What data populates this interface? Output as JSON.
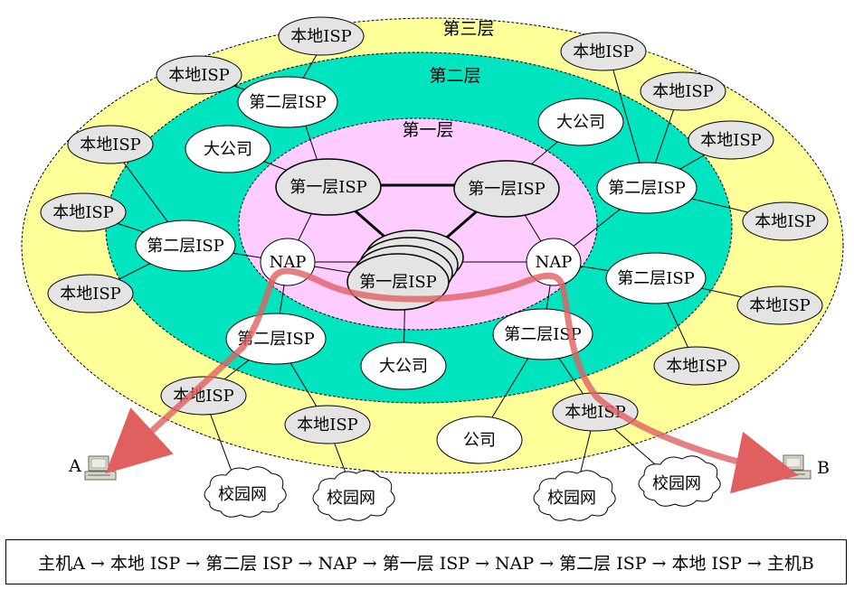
{
  "layers": {
    "tier3": "第三层",
    "tier2": "第二层",
    "tier1": "第一层"
  },
  "nodes": {
    "local_isp": "本地ISP",
    "local_isp_spaced": "本地 ISP",
    "tier2_isp": "第二层ISP",
    "tier1_isp": "第一层ISP",
    "nap": "NAP",
    "big_company": "大公司",
    "company": "公司",
    "campus": "校园网"
  },
  "hosts": {
    "a": "A",
    "b": "B"
  },
  "route": "主机A → 本地 ISP → 第二层 ISP → NAP → 第一层 ISP → NAP → 第二层 ISP → 本地 ISP → 主机B",
  "colors": {
    "tier3": "#ffff99",
    "tier2": "#00e5c0",
    "tier1": "#ffccff",
    "path": "#e06060"
  }
}
